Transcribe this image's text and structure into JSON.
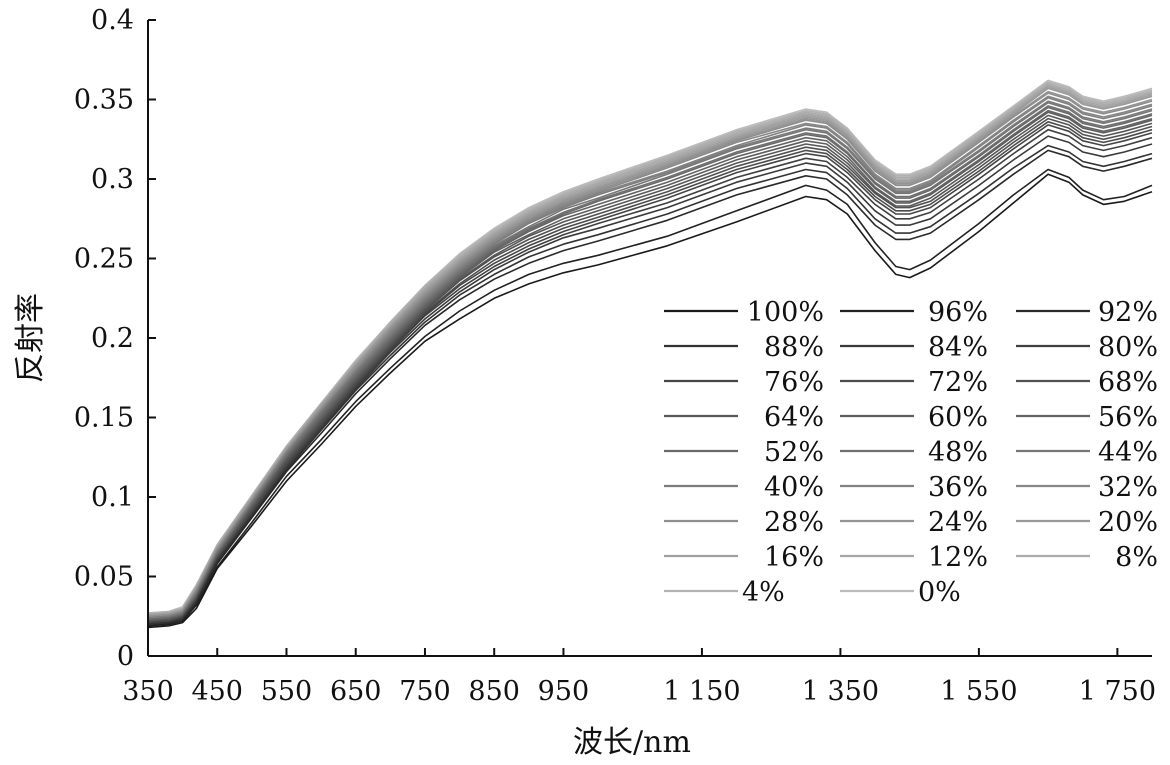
{
  "chart_data": {
    "type": "line",
    "title": "",
    "xlabel": "波长/nm",
    "ylabel": "反射率",
    "xlim": [
      350,
      1800
    ],
    "ylim": [
      0,
      0.4
    ],
    "grid": false,
    "legend_position": "right-center",
    "x_ticks": [
      350,
      450,
      550,
      650,
      750,
      850,
      950,
      1150,
      1350,
      1550,
      1750
    ],
    "x_tick_labels": [
      "350",
      "450",
      "550",
      "650",
      "750",
      "850",
      "950",
      "1 150",
      "1 350",
      "1 550",
      "1 750"
    ],
    "y_ticks": [
      0,
      0.05,
      0.1,
      0.15,
      0.2,
      0.25,
      0.3,
      0.35,
      0.4
    ],
    "y_tick_labels": [
      "0",
      "0.05",
      "0.1",
      "0.15",
      "0.2",
      "0.25",
      "0.3",
      "0.35",
      "0.4"
    ],
    "x": [
      350,
      380,
      400,
      420,
      450,
      500,
      550,
      600,
      650,
      700,
      750,
      800,
      850,
      900,
      950,
      1000,
      1100,
      1200,
      1300,
      1330,
      1360,
      1400,
      1430,
      1450,
      1480,
      1550,
      1600,
      1650,
      1680,
      1700,
      1730,
      1760,
      1800
    ],
    "series": [
      {
        "name": "100%",
        "color": "#1a1a1a",
        "values": [
          0.018,
          0.019,
          0.021,
          0.03,
          0.055,
          0.082,
          0.11,
          0.133,
          0.157,
          0.178,
          0.198,
          0.212,
          0.225,
          0.234,
          0.241,
          0.246,
          0.258,
          0.273,
          0.289,
          0.287,
          0.278,
          0.255,
          0.24,
          0.238,
          0.244,
          0.267,
          0.285,
          0.303,
          0.298,
          0.29,
          0.284,
          0.286,
          0.292
        ]
      },
      {
        "name": "96%",
        "color": "#222222",
        "values": [
          0.019,
          0.02,
          0.022,
          0.032,
          0.056,
          0.084,
          0.113,
          0.136,
          0.16,
          0.181,
          0.201,
          0.217,
          0.23,
          0.24,
          0.247,
          0.252,
          0.264,
          0.28,
          0.296,
          0.293,
          0.284,
          0.26,
          0.245,
          0.243,
          0.249,
          0.272,
          0.29,
          0.306,
          0.301,
          0.293,
          0.287,
          0.289,
          0.296
        ]
      },
      {
        "name": "92%",
        "color": "#2a2a2a",
        "values": [
          0.019,
          0.02,
          0.022,
          0.033,
          0.058,
          0.087,
          0.116,
          0.14,
          0.165,
          0.187,
          0.208,
          0.224,
          0.237,
          0.247,
          0.255,
          0.261,
          0.274,
          0.29,
          0.302,
          0.3,
          0.29,
          0.271,
          0.262,
          0.262,
          0.266,
          0.287,
          0.303,
          0.318,
          0.314,
          0.308,
          0.305,
          0.308,
          0.313
        ]
      },
      {
        "name": "88%",
        "color": "#333333",
        "values": [
          0.02,
          0.021,
          0.023,
          0.034,
          0.059,
          0.088,
          0.117,
          0.142,
          0.167,
          0.189,
          0.21,
          0.227,
          0.24,
          0.251,
          0.259,
          0.265,
          0.278,
          0.294,
          0.306,
          0.304,
          0.294,
          0.275,
          0.266,
          0.266,
          0.27,
          0.291,
          0.307,
          0.321,
          0.317,
          0.311,
          0.308,
          0.311,
          0.316
        ]
      },
      {
        "name": "84%",
        "color": "#3a3a3a",
        "values": [
          0.02,
          0.021,
          0.023,
          0.034,
          0.06,
          0.089,
          0.118,
          0.143,
          0.168,
          0.191,
          0.212,
          0.229,
          0.243,
          0.254,
          0.263,
          0.269,
          0.282,
          0.298,
          0.31,
          0.308,
          0.298,
          0.28,
          0.271,
          0.271,
          0.275,
          0.296,
          0.312,
          0.327,
          0.323,
          0.317,
          0.314,
          0.317,
          0.322
        ]
      },
      {
        "name": "80%",
        "color": "#404040",
        "values": [
          0.02,
          0.021,
          0.024,
          0.035,
          0.06,
          0.089,
          0.119,
          0.144,
          0.169,
          0.192,
          0.214,
          0.231,
          0.245,
          0.256,
          0.265,
          0.272,
          0.285,
          0.301,
          0.313,
          0.311,
          0.301,
          0.284,
          0.275,
          0.275,
          0.279,
          0.3,
          0.316,
          0.331,
          0.327,
          0.321,
          0.318,
          0.321,
          0.326
        ]
      },
      {
        "name": "76%",
        "color": "#464646",
        "values": [
          0.021,
          0.022,
          0.024,
          0.035,
          0.061,
          0.09,
          0.12,
          0.145,
          0.17,
          0.193,
          0.215,
          0.233,
          0.247,
          0.258,
          0.267,
          0.274,
          0.288,
          0.304,
          0.316,
          0.314,
          0.304,
          0.287,
          0.278,
          0.278,
          0.282,
          0.303,
          0.319,
          0.334,
          0.33,
          0.324,
          0.321,
          0.324,
          0.329
        ]
      },
      {
        "name": "72%",
        "color": "#4c4c4c",
        "values": [
          0.021,
          0.022,
          0.024,
          0.036,
          0.061,
          0.091,
          0.121,
          0.146,
          0.171,
          0.194,
          0.216,
          0.234,
          0.249,
          0.26,
          0.269,
          0.276,
          0.29,
          0.306,
          0.318,
          0.316,
          0.306,
          0.289,
          0.28,
          0.28,
          0.284,
          0.305,
          0.321,
          0.336,
          0.332,
          0.326,
          0.323,
          0.326,
          0.331
        ]
      },
      {
        "name": "68%",
        "color": "#525252",
        "values": [
          0.021,
          0.022,
          0.025,
          0.036,
          0.062,
          0.092,
          0.122,
          0.147,
          0.172,
          0.195,
          0.217,
          0.236,
          0.251,
          0.262,
          0.271,
          0.278,
          0.292,
          0.308,
          0.32,
          0.318,
          0.308,
          0.291,
          0.282,
          0.282,
          0.286,
          0.307,
          0.323,
          0.338,
          0.334,
          0.328,
          0.325,
          0.328,
          0.333
        ]
      },
      {
        "name": "64%",
        "color": "#585858",
        "values": [
          0.022,
          0.023,
          0.025,
          0.037,
          0.062,
          0.093,
          0.123,
          0.148,
          0.173,
          0.196,
          0.218,
          0.237,
          0.252,
          0.264,
          0.273,
          0.28,
          0.294,
          0.31,
          0.322,
          0.32,
          0.31,
          0.292,
          0.283,
          0.283,
          0.288,
          0.309,
          0.325,
          0.34,
          0.336,
          0.33,
          0.327,
          0.33,
          0.335
        ]
      },
      {
        "name": "60%",
        "color": "#5e5e5e",
        "values": [
          0.022,
          0.023,
          0.025,
          0.037,
          0.063,
          0.093,
          0.124,
          0.149,
          0.174,
          0.197,
          0.219,
          0.238,
          0.254,
          0.265,
          0.275,
          0.282,
          0.296,
          0.312,
          0.324,
          0.322,
          0.312,
          0.294,
          0.285,
          0.285,
          0.29,
          0.311,
          0.327,
          0.342,
          0.338,
          0.332,
          0.329,
          0.332,
          0.337
        ]
      },
      {
        "name": "56%",
        "color": "#646464",
        "values": [
          0.022,
          0.023,
          0.026,
          0.038,
          0.063,
          0.094,
          0.124,
          0.15,
          0.175,
          0.198,
          0.22,
          0.239,
          0.255,
          0.267,
          0.277,
          0.284,
          0.298,
          0.314,
          0.326,
          0.324,
          0.314,
          0.295,
          0.286,
          0.286,
          0.291,
          0.312,
          0.328,
          0.343,
          0.339,
          0.333,
          0.33,
          0.333,
          0.338
        ]
      },
      {
        "name": "52%",
        "color": "#6a6a6a",
        "values": [
          0.023,
          0.024,
          0.026,
          0.038,
          0.064,
          0.095,
          0.125,
          0.151,
          0.176,
          0.199,
          0.221,
          0.24,
          0.256,
          0.268,
          0.278,
          0.286,
          0.3,
          0.316,
          0.328,
          0.326,
          0.316,
          0.297,
          0.288,
          0.288,
          0.293,
          0.314,
          0.33,
          0.345,
          0.341,
          0.335,
          0.332,
          0.335,
          0.34
        ]
      },
      {
        "name": "48%",
        "color": "#707070",
        "values": [
          0.023,
          0.024,
          0.026,
          0.039,
          0.064,
          0.095,
          0.126,
          0.152,
          0.177,
          0.2,
          0.222,
          0.241,
          0.257,
          0.269,
          0.279,
          0.287,
          0.301,
          0.317,
          0.329,
          0.327,
          0.317,
          0.298,
          0.289,
          0.289,
          0.294,
          0.315,
          0.331,
          0.346,
          0.342,
          0.336,
          0.333,
          0.336,
          0.341
        ]
      },
      {
        "name": "44%",
        "color": "#767676",
        "values": [
          0.023,
          0.024,
          0.027,
          0.039,
          0.065,
          0.096,
          0.127,
          0.153,
          0.178,
          0.201,
          0.223,
          0.242,
          0.258,
          0.27,
          0.281,
          0.288,
          0.303,
          0.319,
          0.331,
          0.329,
          0.319,
          0.3,
          0.291,
          0.291,
          0.296,
          0.317,
          0.333,
          0.348,
          0.344,
          0.338,
          0.335,
          0.338,
          0.343
        ]
      },
      {
        "name": "40%",
        "color": "#7c7c7c",
        "values": [
          0.024,
          0.025,
          0.027,
          0.04,
          0.065,
          0.096,
          0.127,
          0.153,
          0.179,
          0.202,
          0.224,
          0.243,
          0.259,
          0.272,
          0.282,
          0.29,
          0.304,
          0.32,
          0.332,
          0.33,
          0.32,
          0.301,
          0.292,
          0.292,
          0.297,
          0.318,
          0.334,
          0.349,
          0.345,
          0.339,
          0.336,
          0.339,
          0.344
        ]
      },
      {
        "name": "36%",
        "color": "#828282",
        "values": [
          0.024,
          0.025,
          0.027,
          0.04,
          0.066,
          0.097,
          0.128,
          0.154,
          0.179,
          0.203,
          0.225,
          0.244,
          0.26,
          0.273,
          0.283,
          0.291,
          0.305,
          0.321,
          0.334,
          0.332,
          0.322,
          0.302,
          0.293,
          0.293,
          0.298,
          0.32,
          0.336,
          0.351,
          0.347,
          0.341,
          0.338,
          0.341,
          0.346
        ]
      },
      {
        "name": "32%",
        "color": "#888888",
        "values": [
          0.024,
          0.025,
          0.028,
          0.041,
          0.066,
          0.097,
          0.128,
          0.155,
          0.18,
          0.204,
          0.226,
          0.245,
          0.261,
          0.274,
          0.284,
          0.292,
          0.307,
          0.323,
          0.335,
          0.333,
          0.323,
          0.303,
          0.294,
          0.294,
          0.299,
          0.321,
          0.337,
          0.352,
          0.348,
          0.342,
          0.339,
          0.342,
          0.347
        ]
      },
      {
        "name": "28%",
        "color": "#8e8e8e",
        "values": [
          0.025,
          0.026,
          0.028,
          0.041,
          0.067,
          0.098,
          0.129,
          0.155,
          0.181,
          0.205,
          0.227,
          0.246,
          0.262,
          0.275,
          0.285,
          0.293,
          0.308,
          0.324,
          0.337,
          0.335,
          0.325,
          0.305,
          0.296,
          0.296,
          0.301,
          0.323,
          0.339,
          0.354,
          0.35,
          0.344,
          0.341,
          0.344,
          0.349
        ]
      },
      {
        "name": "24%",
        "color": "#949494",
        "values": [
          0.025,
          0.026,
          0.028,
          0.042,
          0.067,
          0.098,
          0.129,
          0.156,
          0.182,
          0.206,
          0.228,
          0.247,
          0.263,
          0.276,
          0.286,
          0.294,
          0.309,
          0.325,
          0.338,
          0.336,
          0.326,
          0.306,
          0.297,
          0.297,
          0.302,
          0.324,
          0.34,
          0.355,
          0.351,
          0.345,
          0.342,
          0.345,
          0.35
        ]
      },
      {
        "name": "20%",
        "color": "#9a9a9a",
        "values": [
          0.025,
          0.026,
          0.029,
          0.042,
          0.068,
          0.099,
          0.13,
          0.157,
          0.183,
          0.207,
          0.229,
          0.248,
          0.264,
          0.277,
          0.287,
          0.295,
          0.31,
          0.326,
          0.339,
          0.337,
          0.327,
          0.307,
          0.298,
          0.298,
          0.303,
          0.325,
          0.341,
          0.357,
          0.353,
          0.347,
          0.344,
          0.347,
          0.352
        ]
      },
      {
        "name": "16%",
        "color": "#a0a0a0",
        "values": [
          0.026,
          0.027,
          0.029,
          0.043,
          0.068,
          0.099,
          0.13,
          0.157,
          0.183,
          0.207,
          0.23,
          0.249,
          0.265,
          0.278,
          0.288,
          0.296,
          0.311,
          0.327,
          0.34,
          0.338,
          0.328,
          0.308,
          0.299,
          0.299,
          0.304,
          0.326,
          0.342,
          0.358,
          0.354,
          0.348,
          0.345,
          0.348,
          0.353
        ]
      },
      {
        "name": "12%",
        "color": "#a6a6a6",
        "values": [
          0.026,
          0.027,
          0.029,
          0.043,
          0.069,
          0.1,
          0.131,
          0.158,
          0.184,
          0.208,
          0.231,
          0.25,
          0.266,
          0.279,
          0.289,
          0.297,
          0.312,
          0.328,
          0.341,
          0.339,
          0.329,
          0.309,
          0.3,
          0.3,
          0.305,
          0.327,
          0.343,
          0.359,
          0.355,
          0.349,
          0.346,
          0.349,
          0.354
        ]
      },
      {
        "name": "8%",
        "color": "#acacac",
        "values": [
          0.026,
          0.027,
          0.03,
          0.044,
          0.069,
          0.1,
          0.131,
          0.158,
          0.185,
          0.209,
          0.232,
          0.251,
          0.267,
          0.28,
          0.29,
          0.298,
          0.313,
          0.329,
          0.342,
          0.34,
          0.33,
          0.31,
          0.301,
          0.301,
          0.306,
          0.328,
          0.344,
          0.36,
          0.356,
          0.35,
          0.347,
          0.35,
          0.355
        ]
      },
      {
        "name": "4%",
        "color": "#b2b2b2",
        "values": [
          0.027,
          0.028,
          0.03,
          0.044,
          0.07,
          0.101,
          0.132,
          0.159,
          0.185,
          0.21,
          0.233,
          0.252,
          0.268,
          0.281,
          0.291,
          0.299,
          0.314,
          0.33,
          0.343,
          0.341,
          0.331,
          0.311,
          0.302,
          0.302,
          0.307,
          0.329,
          0.345,
          0.361,
          0.357,
          0.351,
          0.348,
          0.351,
          0.356
        ]
      },
      {
        "name": "0%",
        "color": "#bcbcbc",
        "values": [
          0.027,
          0.028,
          0.031,
          0.045,
          0.07,
          0.101,
          0.132,
          0.159,
          0.186,
          0.21,
          0.233,
          0.253,
          0.269,
          0.282,
          0.292,
          0.3,
          0.315,
          0.331,
          0.344,
          0.342,
          0.332,
          0.312,
          0.303,
          0.303,
          0.308,
          0.33,
          0.346,
          0.362,
          0.358,
          0.352,
          0.349,
          0.352,
          0.357
        ]
      }
    ]
  }
}
